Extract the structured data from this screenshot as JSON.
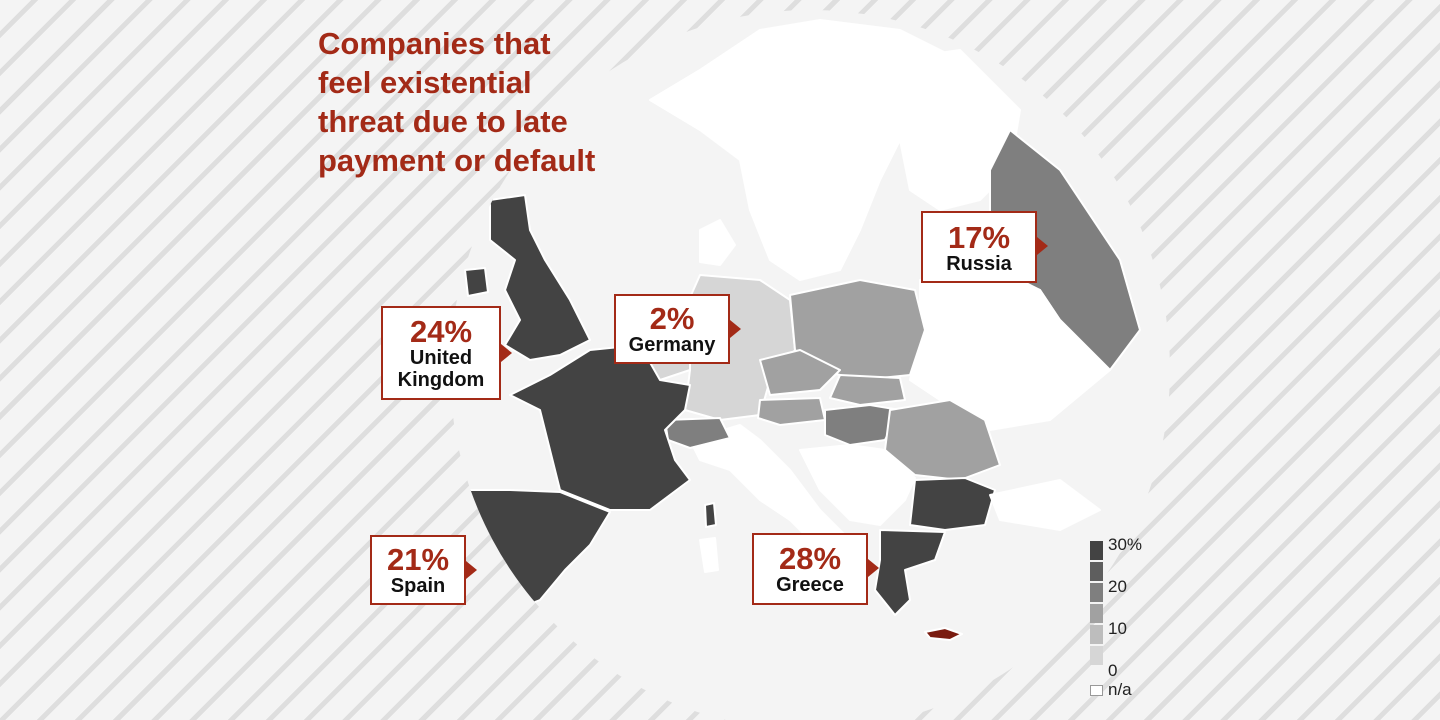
{
  "title": "Companies that\nfeel existential\nthreat due to late\npayment or default",
  "palette": {
    "accent": "#a32a17",
    "shade_30": "#434343",
    "shade_25": "#5e5e5e",
    "shade_20": "#7f7f7f",
    "shade_15": "#a1a1a1",
    "shade_10": "#bdbdbd",
    "shade_5": "#d6d6d6",
    "na": "#ffffff"
  },
  "callouts": [
    {
      "id": "uk",
      "value": "24%",
      "label": "United\nKingdom"
    },
    {
      "id": "germany",
      "value": "2%",
      "label": "Germany"
    },
    {
      "id": "russia",
      "value": "17%",
      "label": "Russia"
    },
    {
      "id": "spain",
      "value": "21%",
      "label": "Spain"
    },
    {
      "id": "greece",
      "value": "28%",
      "label": "Greece"
    }
  ],
  "legend": {
    "ticks": [
      "30",
      "20",
      "10",
      "0"
    ],
    "unit": "%",
    "na_label": "n/a"
  }
}
